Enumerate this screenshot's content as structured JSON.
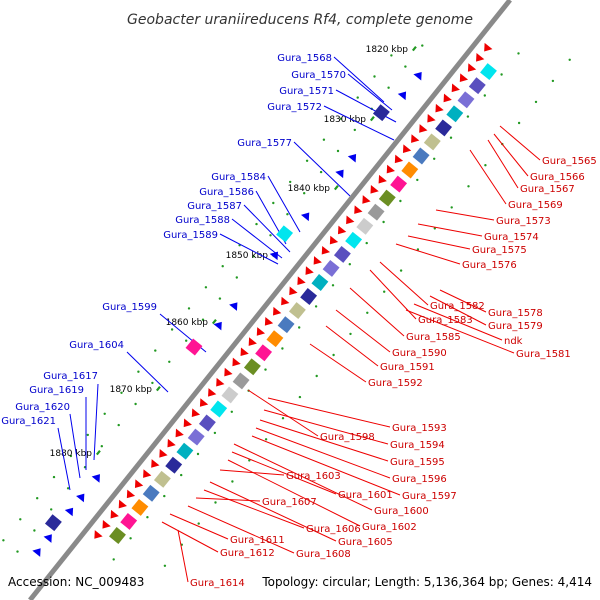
{
  "title": "Geobacter uraniireducens Rf4, complete genome",
  "accession": "Accession: NC_009483",
  "topology": "Topology: circular; Length: 5,136,364 bp; Genes: 4,414",
  "kbp_labels": [
    "1820 kbp",
    "1830 kbp",
    "1840 kbp",
    "1850 kbp",
    "1860 kbp",
    "1870 kbp",
    "1880 kbp"
  ],
  "blue_labels": [
    "Gura_1568",
    "Gura_1570",
    "Gura_1571",
    "Gura_1572",
    "Gura_1577",
    "Gura_1584",
    "Gura_1586",
    "Gura_1587",
    "Gura_1588",
    "Gura_1589",
    "Gura_1599",
    "Gura_1604",
    "Gura_1617",
    "Gura_1619",
    "Gura_1620",
    "Gura_1621"
  ],
  "red_labels": [
    "Gura_1565",
    "Gura_1566",
    "Gura_1567",
    "Gura_1569",
    "Gura_1573",
    "Gura_1574",
    "Gura_1575",
    "Gura_1576",
    "Gura_1578",
    "Gura_1579",
    "ndk",
    "Gura_1581",
    "Gura_1582",
    "Gura_1583",
    "Gura_1585",
    "Gura_1590",
    "Gura_1591",
    "Gura_1592",
    "Gura_1593",
    "Gura_1594",
    "Gura_1595",
    "Gura_1596",
    "Gura_1597",
    "Gura_1598",
    "Gura_1600",
    "Gura_1601",
    "Gura_1602",
    "Gura_1603",
    "Gura_1605",
    "Gura_1606",
    "Gura_1607",
    "Gura_1608",
    "Gura_1611",
    "Gura_1612",
    "Gura_1614"
  ],
  "colors": {
    "blue": "#0000ee",
    "red": "#ee0000",
    "backbone": "#777777",
    "green_dot": "#229922"
  }
}
